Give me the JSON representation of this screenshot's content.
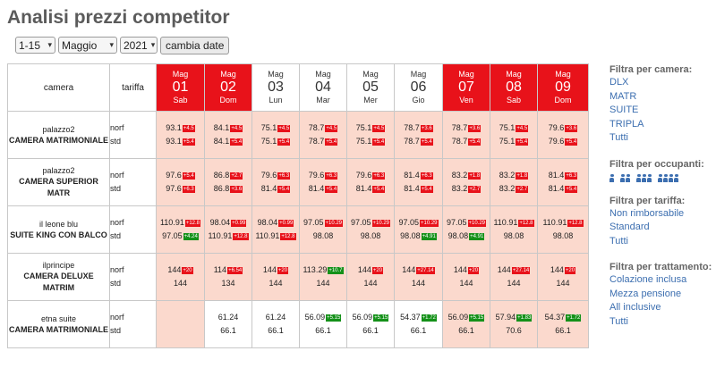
{
  "title": "Analisi prezzi competitor",
  "controls": {
    "range": "1-15",
    "month": "Maggio",
    "year": "2021",
    "button": "cambia date"
  },
  "header": {
    "camera": "camera",
    "tariffa": "tariffa",
    "days": [
      {
        "m": "Mag",
        "d": "01",
        "w": "Sab",
        "red": true
      },
      {
        "m": "Mag",
        "d": "02",
        "w": "Dom",
        "red": true
      },
      {
        "m": "Mag",
        "d": "03",
        "w": "Lun",
        "red": false
      },
      {
        "m": "Mag",
        "d": "04",
        "w": "Mar",
        "red": false
      },
      {
        "m": "Mag",
        "d": "05",
        "w": "Mer",
        "red": false
      },
      {
        "m": "Mag",
        "d": "06",
        "w": "Gio",
        "red": false
      },
      {
        "m": "Mag",
        "d": "07",
        "w": "Ven",
        "red": true
      },
      {
        "m": "Mag",
        "d": "08",
        "w": "Sab",
        "red": true
      },
      {
        "m": "Mag",
        "d": "09",
        "w": "Dom",
        "red": true
      }
    ]
  },
  "rows": [
    {
      "hotel": "palazzo2",
      "room": "CAMERA MATRIMONIALE",
      "t1": "norf",
      "t2": "std",
      "cells": [
        {
          "l1": {
            "p": "93.1",
            "b": "+4.5",
            "c": "red"
          },
          "l2": {
            "p": "93.1",
            "b": "+5.4",
            "c": "red"
          }
        },
        {
          "l1": {
            "p": "84.1",
            "b": "+4.5",
            "c": "red"
          },
          "l2": {
            "p": "84.1",
            "b": "+5.4",
            "c": "red"
          }
        },
        {
          "l1": {
            "p": "75.1",
            "b": "+4.5",
            "c": "red"
          },
          "l2": {
            "p": "75.1",
            "b": "+5.4",
            "c": "red"
          }
        },
        {
          "l1": {
            "p": "78.7",
            "b": "+4.5",
            "c": "red"
          },
          "l2": {
            "p": "78.7",
            "b": "+5.4",
            "c": "red"
          }
        },
        {
          "l1": {
            "p": "75.1",
            "b": "+4.5",
            "c": "red"
          },
          "l2": {
            "p": "75.1",
            "b": "+5.4",
            "c": "red"
          }
        },
        {
          "l1": {
            "p": "78.7",
            "b": "+3.6",
            "c": "red"
          },
          "l2": {
            "p": "78.7",
            "b": "+5.4",
            "c": "red"
          }
        },
        {
          "l1": {
            "p": "78.7",
            "b": "+3.6",
            "c": "red"
          },
          "l2": {
            "p": "78.7",
            "b": "+5.4",
            "c": "red"
          }
        },
        {
          "l1": {
            "p": "75.1",
            "b": "+4.5",
            "c": "red"
          },
          "l2": {
            "p": "75.1",
            "b": "+5.4",
            "c": "red"
          }
        },
        {
          "l1": {
            "p": "79.6",
            "b": "+3.6",
            "c": "red"
          },
          "l2": {
            "p": "79.6",
            "b": "+5.4",
            "c": "red"
          }
        }
      ]
    },
    {
      "hotel": "palazzo2",
      "room": "CAMERA SUPERIOR MATR",
      "t1": "norf",
      "t2": "std",
      "cells": [
        {
          "l1": {
            "p": "97.6",
            "b": "+5.4",
            "c": "red"
          },
          "l2": {
            "p": "97.6",
            "b": "+6.3",
            "c": "red"
          }
        },
        {
          "l1": {
            "p": "86.8",
            "b": "+2.7",
            "c": "red"
          },
          "l2": {
            "p": "86.8",
            "b": "+3.6",
            "c": "red"
          }
        },
        {
          "l1": {
            "p": "79.6",
            "b": "+6.3",
            "c": "red"
          },
          "l2": {
            "p": "81.4",
            "b": "+5.4",
            "c": "red"
          }
        },
        {
          "l1": {
            "p": "79.6",
            "b": "+6.3",
            "c": "red"
          },
          "l2": {
            "p": "81.4",
            "b": "+5.4",
            "c": "red"
          }
        },
        {
          "l1": {
            "p": "79.6",
            "b": "+6.3",
            "c": "red"
          },
          "l2": {
            "p": "81.4",
            "b": "+5.4",
            "c": "red"
          }
        },
        {
          "l1": {
            "p": "81.4",
            "b": "+6.3",
            "c": "red"
          },
          "l2": {
            "p": "81.4",
            "b": "+5.4",
            "c": "red"
          }
        },
        {
          "l1": {
            "p": "83.2",
            "b": "+1.8",
            "c": "red"
          },
          "l2": {
            "p": "83.2",
            "b": "+2.7",
            "c": "red"
          }
        },
        {
          "l1": {
            "p": "83.2",
            "b": "+1.8",
            "c": "red"
          },
          "l2": {
            "p": "83.2",
            "b": "+2.7",
            "c": "red"
          }
        },
        {
          "l1": {
            "p": "81.4",
            "b": "+6.3",
            "c": "red"
          },
          "l2": {
            "p": "81.4",
            "b": "+5.4",
            "c": "red"
          }
        }
      ]
    },
    {
      "hotel": "il leone blu",
      "room": "SUITE KING CON BALCO",
      "t1": "norf",
      "t2": "std",
      "cells": [
        {
          "l1": {
            "p": "110.91",
            "b": "+12.8",
            "c": "red"
          },
          "l2": {
            "p": "97.05",
            "b": "+4.24",
            "c": "green"
          }
        },
        {
          "l1": {
            "p": "98.04",
            "b": "+0.99",
            "c": "red"
          },
          "l2": {
            "p": "110.91",
            "b": "+12.8",
            "c": "red"
          }
        },
        {
          "l1": {
            "p": "98.04",
            "b": "+0.99",
            "c": "red"
          },
          "l2": {
            "p": "110.91",
            "b": "+12.8",
            "c": "red"
          }
        },
        {
          "l1": {
            "p": "97.05",
            "b": "+10.29",
            "c": "red"
          },
          "l2": {
            "p": "98.08",
            "b": "",
            "c": "red"
          }
        },
        {
          "l1": {
            "p": "97.05",
            "b": "+10.29",
            "c": "red"
          },
          "l2": {
            "p": "98.08",
            "b": "",
            "c": "red"
          }
        },
        {
          "l1": {
            "p": "97.05",
            "b": "+10.29",
            "c": "red"
          },
          "l2": {
            "p": "98.08",
            "b": "+4.91",
            "c": "green"
          }
        },
        {
          "l1": {
            "p": "97.05",
            "b": "+10.29",
            "c": "red"
          },
          "l2": {
            "p": "98.08",
            "b": "+4.91",
            "c": "green"
          }
        },
        {
          "l1": {
            "p": "110.91",
            "b": "+12.8",
            "c": "red"
          },
          "l2": {
            "p": "98.08",
            "b": "",
            "c": "red"
          }
        },
        {
          "l1": {
            "p": "110.91",
            "b": "+12.8",
            "c": "red"
          },
          "l2": {
            "p": "98.08",
            "b": "",
            "c": "red"
          }
        }
      ]
    },
    {
      "hotel": "ilprincipe",
      "room": "CAMERA DELUXE MATRIM",
      "t1": "norf",
      "t2": "std",
      "cells": [
        {
          "l1": {
            "p": "144",
            "b": "+20",
            "c": "red"
          },
          "l2": {
            "p": "144",
            "b": "",
            "c": "red"
          }
        },
        {
          "l1": {
            "p": "114",
            "b": "+6.54",
            "c": "red"
          },
          "l2": {
            "p": "134",
            "b": "",
            "c": "red"
          }
        },
        {
          "l1": {
            "p": "144",
            "b": "+20",
            "c": "red"
          },
          "l2": {
            "p": "144",
            "b": "",
            "c": "red"
          }
        },
        {
          "l1": {
            "p": "113.29",
            "b": "+10.7",
            "c": "green"
          },
          "l2": {
            "p": "144",
            "b": "",
            "c": "red"
          }
        },
        {
          "l1": {
            "p": "144",
            "b": "+20",
            "c": "red"
          },
          "l2": {
            "p": "144",
            "b": "",
            "c": "red"
          }
        },
        {
          "l1": {
            "p": "144",
            "b": "+27.14",
            "c": "red"
          },
          "l2": {
            "p": "144",
            "b": "",
            "c": "red"
          }
        },
        {
          "l1": {
            "p": "144",
            "b": "+20",
            "c": "red"
          },
          "l2": {
            "p": "144",
            "b": "",
            "c": "red"
          }
        },
        {
          "l1": {
            "p": "144",
            "b": "+27.14",
            "c": "red"
          },
          "l2": {
            "p": "144",
            "b": "",
            "c": "red"
          }
        },
        {
          "l1": {
            "p": "144",
            "b": "+20",
            "c": "red"
          },
          "l2": {
            "p": "144",
            "b": "",
            "c": "red"
          }
        }
      ]
    },
    {
      "hotel": "etna suite",
      "room": "CAMERA MATRIMONIALE",
      "t1": "norf",
      "t2": "std",
      "cells": [
        {
          "l1": {
            "p": "",
            "b": "",
            "c": "red"
          },
          "l2": {
            "p": "",
            "b": "",
            "c": "red"
          }
        },
        {
          "l1": {
            "p": "61.24",
            "b": "",
            "c": "red"
          },
          "l2": {
            "p": "66.1",
            "b": "",
            "c": "red"
          },
          "white": true
        },
        {
          "l1": {
            "p": "61.24",
            "b": "",
            "c": "red"
          },
          "l2": {
            "p": "66.1",
            "b": "",
            "c": "red"
          },
          "white": true
        },
        {
          "l1": {
            "p": "56.09",
            "b": "+5.15",
            "c": "green"
          },
          "l2": {
            "p": "66.1",
            "b": "",
            "c": "red"
          },
          "white": true
        },
        {
          "l1": {
            "p": "56.09",
            "b": "+5.15",
            "c": "green"
          },
          "l2": {
            "p": "66.1",
            "b": "",
            "c": "red"
          },
          "white": true
        },
        {
          "l1": {
            "p": "54.37",
            "b": "+1.72",
            "c": "green"
          },
          "l2": {
            "p": "66.1",
            "b": "",
            "c": "red"
          },
          "white": true
        },
        {
          "l1": {
            "p": "56.09",
            "b": "+5.15",
            "c": "green"
          },
          "l2": {
            "p": "66.1",
            "b": "",
            "c": "red"
          }
        },
        {
          "l1": {
            "p": "57.94",
            "b": "+1.83",
            "c": "green"
          },
          "l2": {
            "p": "70.6",
            "b": "",
            "c": "red"
          }
        },
        {
          "l1": {
            "p": "54.37",
            "b": "+1.72",
            "c": "green"
          },
          "l2": {
            "p": "66.1",
            "b": "",
            "c": "red"
          }
        }
      ]
    }
  ],
  "sidebar": {
    "camera": {
      "title": "Filtra per camera:",
      "items": [
        "DLX",
        "MATR",
        "SUITE",
        "TRIPLA",
        "Tutti"
      ]
    },
    "occupanti": {
      "title": "Filtra per occupanti:",
      "icons": [
        "person-1-icon",
        "person-2-icon",
        "person-3-icon",
        "person-4-icon"
      ]
    },
    "tariffa": {
      "title": "Filtra per tariffa:",
      "items": [
        "Non rimborsabile",
        "Standard",
        "Tutti"
      ]
    },
    "trattamento": {
      "title": "Filtra per trattamento:",
      "items": [
        "Colazione inclusa",
        "Mezza pensione",
        "All inclusive",
        "Tutti"
      ]
    }
  },
  "colors": {
    "accent_red": "#e8121a",
    "badge_green": "#149119",
    "cell_bg": "#fbd9cd",
    "link": "#3d6fb0"
  }
}
